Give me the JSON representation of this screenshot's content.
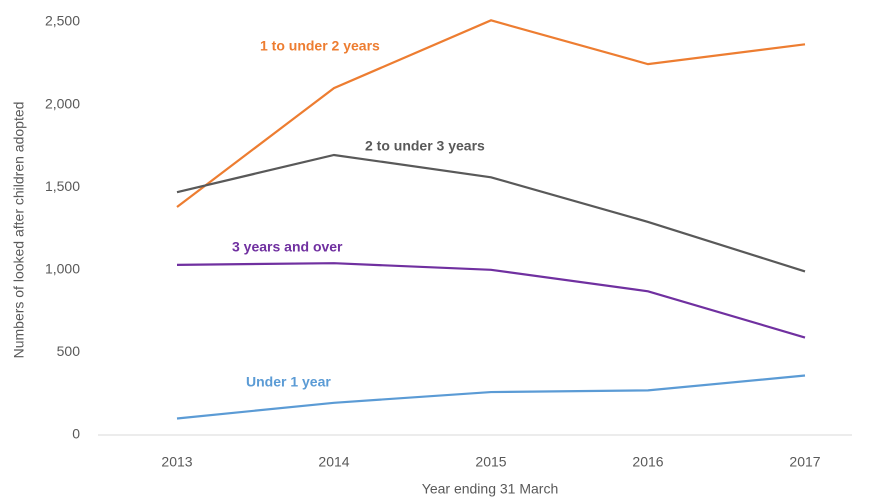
{
  "chart_data": {
    "type": "line",
    "x_label": "Year ending 31 March",
    "y_label": "Numbers of looked after children adopted",
    "categories": [
      "2013",
      "2014",
      "2015",
      "2016",
      "2017"
    ],
    "series": [
      {
        "name": "1 to under 2 years",
        "color": "#ed7d31",
        "values": [
          1380,
          2100,
          2510,
          2245,
          2365
        ]
      },
      {
        "name": "2 to under 3 years",
        "color": "#595959",
        "values": [
          1470,
          1695,
          1560,
          1290,
          990
        ]
      },
      {
        "name": "3 years and over",
        "color": "#7030a0",
        "values": [
          1030,
          1040,
          1000,
          870,
          590
        ]
      },
      {
        "name": "Under 1 year",
        "color": "#5b9bd5",
        "values": [
          100,
          195,
          260,
          270,
          360
        ]
      }
    ],
    "ylim": [
      0,
      2500
    ],
    "yticks": [
      0,
      500,
      {
        "value": 1000,
        "label": "1,000"
      },
      {
        "value": 1500,
        "label": "1,500"
      },
      {
        "value": 2000,
        "label": "2,000"
      },
      {
        "value": 2500,
        "label": "2,500"
      }
    ],
    "grid": false
  }
}
